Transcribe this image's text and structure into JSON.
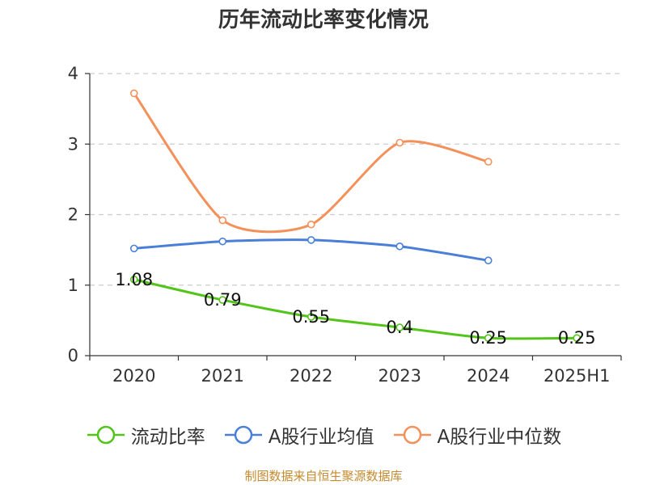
{
  "source_text": "制图数据来自恒生聚源数据库",
  "chart_data": {
    "type": "line",
    "title": "历年流动比率变化情况",
    "xlabel": "",
    "ylabel": "",
    "categories": [
      "2020",
      "2021",
      "2022",
      "2023",
      "2024",
      "2025H1"
    ],
    "ylim": [
      0,
      4
    ],
    "yticks": [
      0,
      1,
      2,
      3,
      4
    ],
    "grid": true,
    "legend_position": "bottom",
    "series": [
      {
        "name": "流动比率",
        "color": "#52c41a",
        "values": [
          1.08,
          0.79,
          0.55,
          0.4,
          0.25,
          0.25
        ],
        "labels": [
          "1.08",
          "0.79",
          "0.55",
          "0.4",
          "0.25",
          "0.25"
        ],
        "show_labels": true
      },
      {
        "name": "A股行业均值",
        "color": "#4a7fd8",
        "values": [
          1.52,
          1.62,
          1.64,
          1.55,
          1.35,
          null
        ],
        "show_labels": false
      },
      {
        "name": "A股行业中位数",
        "color": "#f4915a",
        "values": [
          3.72,
          1.92,
          1.86,
          3.02,
          2.75,
          null
        ],
        "show_labels": false
      }
    ]
  }
}
